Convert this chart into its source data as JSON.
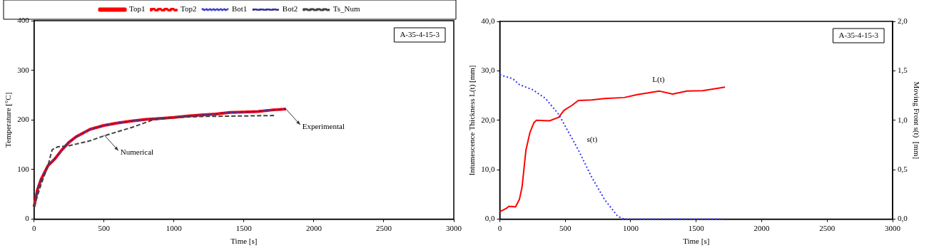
{
  "chart_data": [
    {
      "type": "line",
      "xlabel": "Time [s]",
      "ylabel": "Temperature [°C]",
      "xlim": [
        0,
        3000
      ],
      "xticks": [
        0,
        500,
        1000,
        1500,
        2000,
        2500,
        3000
      ],
      "ylim": [
        0,
        400
      ],
      "yticks": [
        0,
        100,
        200,
        300,
        400
      ],
      "legend": "top",
      "marker": "none",
      "grid": false,
      "annotations": [
        "A-35-4-15-3",
        {
          "text": "Experimental",
          "x": 1800,
          "y": 222
        },
        {
          "text": "Numerical",
          "x": 500,
          "y": 170
        }
      ],
      "series": [
        {
          "name": "Top1",
          "color": "#ff0000",
          "line_style": "solid",
          "x": [
            0,
            25,
            50,
            100,
            150,
            200,
            250,
            300,
            400,
            500,
            600,
            700,
            800,
            900,
            1000,
            1100,
            1200,
            1300,
            1400,
            1500,
            1600,
            1700,
            1800
          ],
          "values": [
            25,
            60,
            80,
            108,
            122,
            140,
            155,
            166,
            181,
            189,
            194,
            198,
            201,
            203,
            205,
            208,
            210,
            212,
            215,
            216,
            217,
            220,
            222
          ]
        },
        {
          "name": "Top2",
          "color": "#ff0000",
          "line_style": "dashed",
          "x": [
            0,
            25,
            50,
            100,
            150,
            200,
            250,
            300,
            400,
            500,
            600,
            700,
            800,
            900,
            1000,
            1100,
            1200,
            1300,
            1400,
            1500,
            1600,
            1700,
            1800
          ],
          "values": [
            25,
            60,
            80,
            108,
            122,
            140,
            155,
            166,
            181,
            189,
            194,
            198,
            201,
            203,
            205,
            208,
            210,
            212,
            215,
            216,
            217,
            220,
            222
          ]
        },
        {
          "name": "Bot1",
          "color": "#3333cc",
          "line_style": "dotted",
          "x": [
            0,
            25,
            50,
            100,
            150,
            200,
            250,
            300,
            400,
            500,
            600,
            700,
            800,
            900,
            1000,
            1100,
            1200,
            1300,
            1400,
            1500,
            1600,
            1700,
            1800
          ],
          "values": [
            25,
            60,
            80,
            108,
            122,
            140,
            155,
            166,
            181,
            189,
            194,
            198,
            201,
            203,
            205,
            208,
            210,
            212,
            215,
            216,
            217,
            220,
            222
          ]
        },
        {
          "name": "Bot2",
          "color": "#333399",
          "line_style": "dashed",
          "x": [
            0,
            25,
            50,
            100,
            150,
            200,
            250,
            300,
            400,
            500,
            600,
            700,
            800,
            900,
            1000,
            1100,
            1200,
            1300,
            1400,
            1500,
            1600,
            1700,
            1800
          ],
          "values": [
            25,
            60,
            80,
            108,
            122,
            140,
            155,
            166,
            181,
            189,
            194,
            198,
            201,
            203,
            205,
            208,
            210,
            212,
            215,
            216,
            217,
            220,
            222
          ]
        },
        {
          "name": "Ts_Num",
          "color": "#404040",
          "line_style": "dashed",
          "x": [
            0,
            50,
            100,
            115,
            130,
            170,
            250,
            400,
            500,
            700,
            850,
            1000,
            1200,
            1500,
            1720
          ],
          "values": [
            25,
            70,
            108,
            125,
            140,
            146,
            148,
            158,
            168,
            185,
            200,
            205,
            207,
            208,
            209
          ]
        }
      ]
    },
    {
      "type": "line",
      "xlabel": "Time [s]",
      "ylabel": "Intumescence Thickness L(t) [mm]",
      "y2label": "Moving Front s(t)  [mm]",
      "xlim": [
        0,
        3000
      ],
      "xticks": [
        0,
        500,
        1000,
        1500,
        2000,
        2500,
        3000
      ],
      "ylim": [
        0,
        40
      ],
      "yticks": [
        {
          "value": 0,
          "label": "0,0"
        },
        {
          "value": 10,
          "label": "10,0"
        },
        {
          "value": 20,
          "label": "20,0"
        },
        {
          "value": 30,
          "label": "30,0"
        },
        {
          "value": 40,
          "label": "40,0"
        }
      ],
      "y2lim": [
        0,
        2
      ],
      "y2ticks": [
        {
          "value": 0,
          "label": "0,0"
        },
        {
          "value": 0.5,
          "label": "0,5"
        },
        {
          "value": 1,
          "label": "1,0"
        },
        {
          "value": 1.5,
          "label": "1,5"
        },
        {
          "value": 2,
          "label": "2,0"
        }
      ],
      "legend": false,
      "marker": "none",
      "grid": false,
      "annotations": [
        "A-35-4-15-3"
      ],
      "series": [
        {
          "name": "L(t)",
          "color": "#ff0000",
          "line_style": "solid",
          "x": [
            0,
            50,
            70,
            120,
            150,
            170,
            200,
            230,
            260,
            280,
            380,
            450,
            490,
            550,
            600,
            700,
            800,
            950,
            1050,
            1220,
            1320,
            1430,
            1550,
            1720
          ],
          "values": [
            1.5,
            2.2,
            2.6,
            2.5,
            4,
            6.5,
            14,
            17.5,
            19.5,
            20,
            19.9,
            20.6,
            22,
            23,
            24,
            24.1,
            24.4,
            24.6,
            25.2,
            25.9,
            25.3,
            25.9,
            26,
            26.7
          ]
        },
        {
          "name": "s(t)",
          "color": "#3333ff",
          "line_style": "dotted",
          "axis": "y2",
          "x": [
            0,
            100,
            150,
            250,
            350,
            450,
            500,
            600,
            700,
            800,
            900,
            950,
            1100,
            1300,
            1500,
            1720
          ],
          "values": [
            1.46,
            1.42,
            1.36,
            1.31,
            1.22,
            1.06,
            0.94,
            0.7,
            0.43,
            0.2,
            0.03,
            0,
            0,
            0,
            0,
            0
          ]
        }
      ]
    }
  ]
}
